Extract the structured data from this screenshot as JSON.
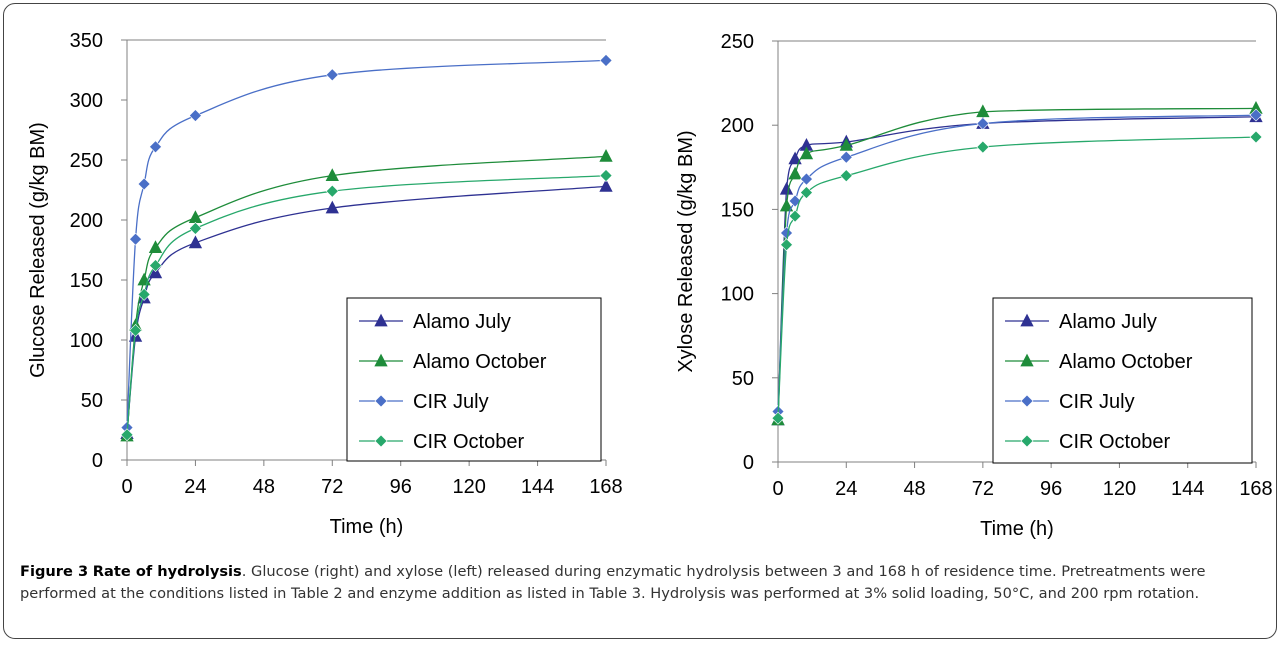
{
  "caption": {
    "label": "Figure 3",
    "title": "Rate of hydrolysis",
    "text": ". Glucose (right) and xylose (left) released during enzymatic hydrolysis between 3 and 168 h of residence time. Pretreatments were performed at the conditions listed in Table 2 and enzyme addition as listed in Table 3. Hydrolysis was performed at 3% solid loading, 50°C, and 200 rpm rotation."
  },
  "chart_data": [
    {
      "type": "line",
      "xlabel": "Time (h)",
      "ylabel": "Glucose Released (g/kg BM)",
      "xlim": [
        0,
        168
      ],
      "ylim": [
        0,
        350
      ],
      "xticks": [
        "0",
        "24",
        "48",
        "72",
        "96",
        "120",
        "144",
        "168"
      ],
      "yticks": [
        "0",
        "50",
        "100",
        "150",
        "200",
        "250",
        "300",
        "350"
      ],
      "grid": "top line only",
      "legend_position": "bottom-right",
      "series": [
        {
          "name": "Alamo July",
          "marker": "triangle",
          "color": "#2e3192",
          "x": [
            0,
            3,
            6,
            10,
            24,
            72,
            168
          ],
          "y": [
            22,
            103,
            135,
            156,
            181,
            210,
            228
          ]
        },
        {
          "name": "Alamo October",
          "marker": "triangle",
          "color": "#1e8c3a",
          "x": [
            0,
            3,
            6,
            10,
            24,
            72,
            168
          ],
          "y": [
            20,
            112,
            150,
            177,
            202,
            237,
            253
          ]
        },
        {
          "name": "CIR July",
          "marker": "diamond",
          "color": "#4a6fc7",
          "x": [
            0,
            3,
            6,
            10,
            24,
            72,
            168
          ],
          "y": [
            27,
            184,
            230,
            261,
            287,
            321,
            333
          ]
        },
        {
          "name": "CIR October",
          "marker": "diamond",
          "color": "#27a86b",
          "x": [
            0,
            3,
            6,
            10,
            24,
            72,
            168
          ],
          "y": [
            21,
            108,
            138,
            162,
            193,
            224,
            237
          ]
        }
      ]
    },
    {
      "type": "line",
      "xlabel": "Time (h)",
      "ylabel": "Xylose Released (g/kg BM)",
      "xlim": [
        0,
        168
      ],
      "ylim": [
        0,
        250
      ],
      "xticks": [
        "0",
        "24",
        "48",
        "72",
        "96",
        "120",
        "144",
        "168"
      ],
      "yticks": [
        "0",
        "50",
        "100",
        "150",
        "200",
        "250"
      ],
      "grid": "top line only",
      "legend_position": "bottom-right",
      "series": [
        {
          "name": "Alamo July",
          "marker": "triangle",
          "color": "#2e3192",
          "x": [
            0,
            3,
            6,
            10,
            24,
            72,
            168
          ],
          "y": [
            25,
            162,
            180,
            188,
            190,
            201,
            205
          ]
        },
        {
          "name": "Alamo October",
          "marker": "triangle",
          "color": "#1e8c3a",
          "x": [
            0,
            3,
            6,
            10,
            24,
            72,
            168
          ],
          "y": [
            25,
            152,
            171,
            183,
            188,
            208,
            210
          ]
        },
        {
          "name": "CIR July",
          "marker": "diamond",
          "color": "#4a6fc7",
          "x": [
            0,
            3,
            6,
            10,
            24,
            72,
            168
          ],
          "y": [
            30,
            136,
            155,
            168,
            181,
            201,
            206
          ]
        },
        {
          "name": "CIR October",
          "marker": "diamond",
          "color": "#27a86b",
          "x": [
            0,
            3,
            6,
            10,
            24,
            72,
            168
          ],
          "y": [
            26,
            129,
            146,
            160,
            170,
            187,
            193
          ]
        }
      ]
    }
  ]
}
